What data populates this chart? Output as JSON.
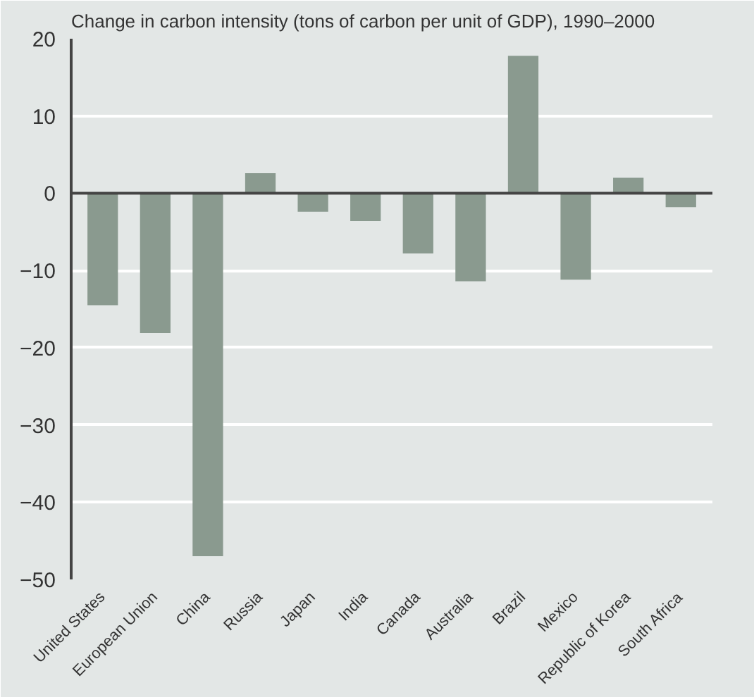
{
  "chart_data": {
    "type": "bar",
    "title": "Change in carbon intensity (tons of carbon per unit of GDP), 1990–2000",
    "categories": [
      "United States",
      "European Union",
      "China",
      "Russia",
      "Japan",
      "India",
      "Canada",
      "Australia",
      "Brazil",
      "Mexico",
      "Republic of Korea",
      "South Africa"
    ],
    "values": [
      -14.5,
      -18.1,
      -47.0,
      2.6,
      -2.4,
      -3.6,
      -7.8,
      -11.4,
      17.8,
      -11.2,
      2.0,
      -1.8
    ],
    "color": "#8a9a8f",
    "ylim": [
      -50,
      20
    ],
    "yticks": [
      -50,
      -40,
      -30,
      -20,
      -10,
      0,
      10,
      20
    ],
    "grid": "y",
    "ref_lines": [
      {
        "axis": "y",
        "value": 0,
        "color": "#444444"
      }
    ]
  }
}
